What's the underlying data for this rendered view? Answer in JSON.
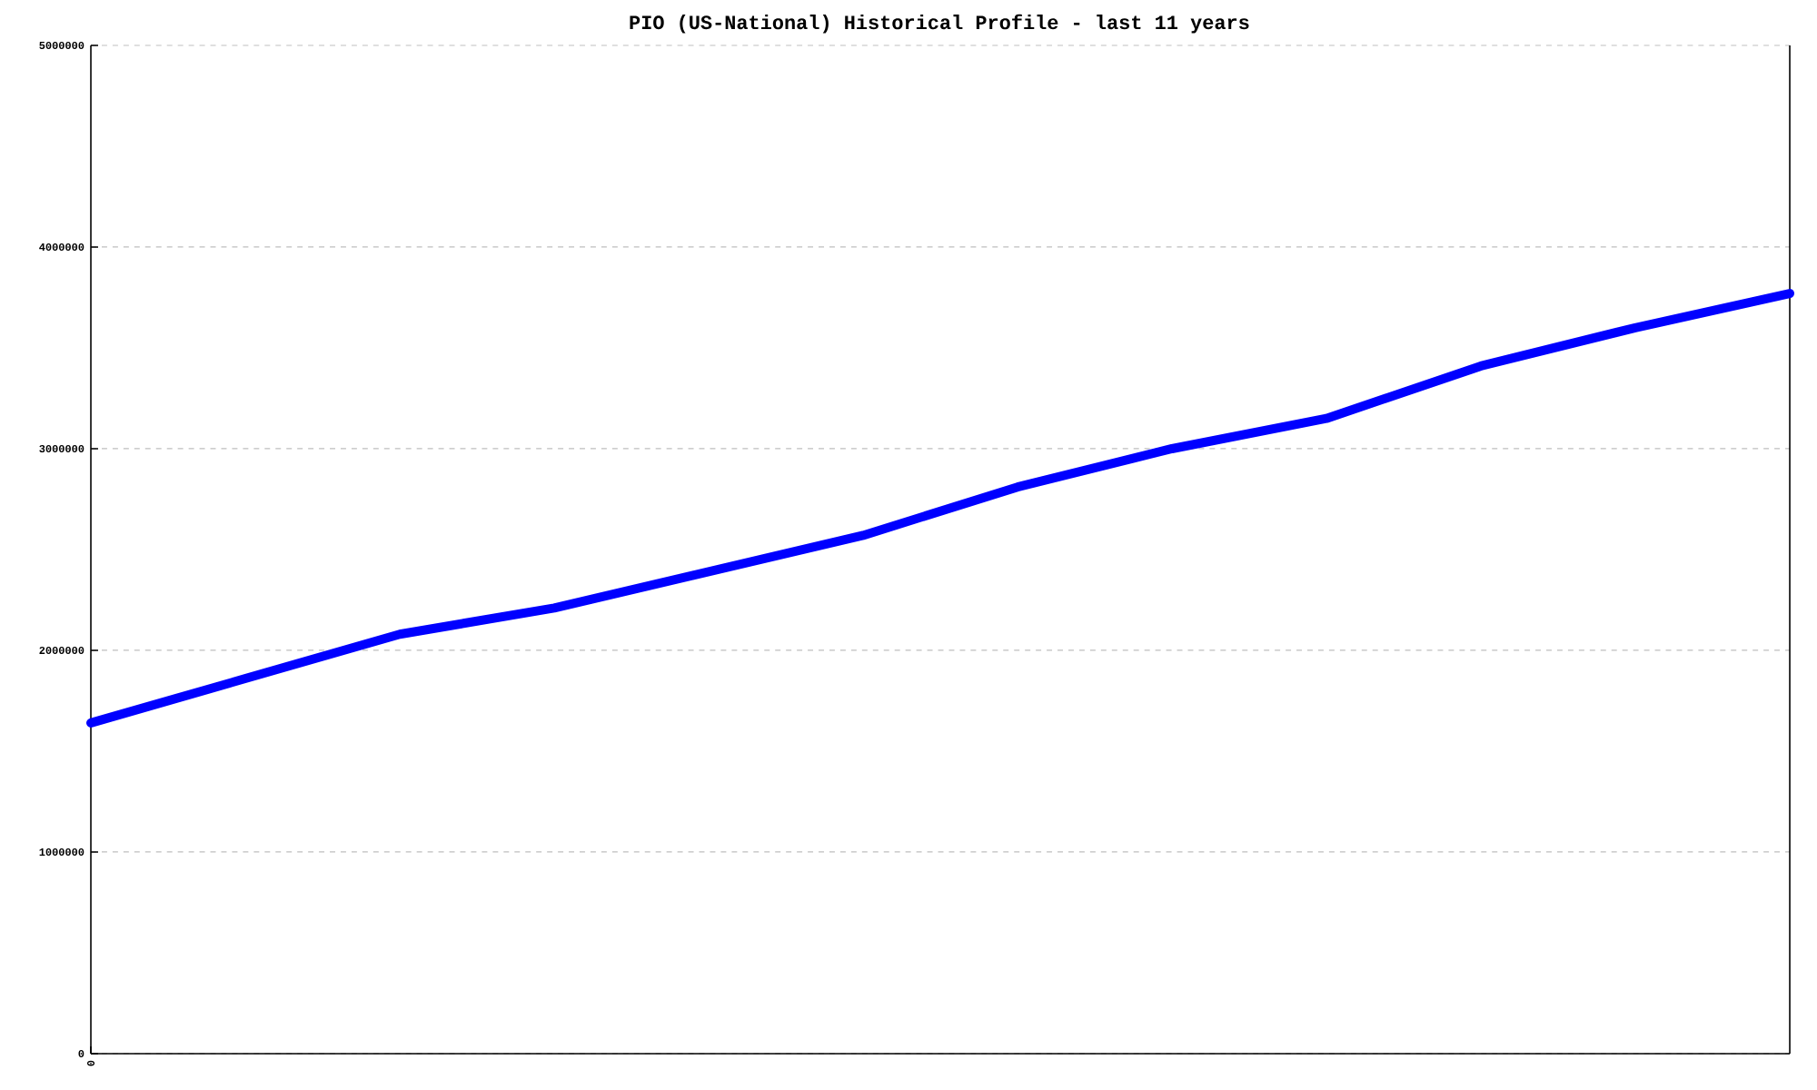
{
  "chart_data": {
    "type": "line",
    "title": "PIO (US-National) Historical Profile - last 11 years",
    "categories": [
      "0",
      null,
      null,
      null,
      null,
      null,
      null,
      null,
      null,
      null,
      null,
      null
    ],
    "series": [
      {
        "color": "#0000ff",
        "values": [
          1640000,
          1860000,
          2080000,
          2210000,
          2390000,
          2570000,
          2810000,
          3000000,
          3150000,
          3410000,
          3600000,
          3770000
        ]
      }
    ],
    "ylim": [
      0,
      5000000
    ],
    "yticks": [
      0,
      1000000,
      2000000,
      3000000,
      4000000,
      5000000
    ],
    "grid": "y",
    "marker": "none",
    "line_style": "solid"
  }
}
